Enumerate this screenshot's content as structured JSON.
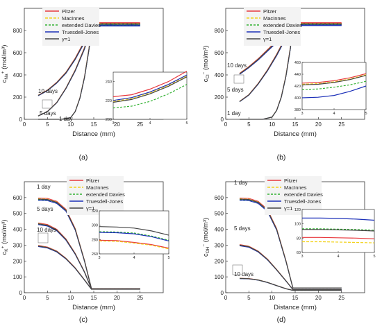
{
  "legend_labels": [
    "Pitzer",
    "MacInnes",
    "extended Davies",
    "Truesdell-Jones",
    "γ=1"
  ],
  "colors": {
    "pitzer": "#e8383d",
    "macinnes": "#f2d21a",
    "extended_davies": "#33b233",
    "truesdell_jones": "#1b2fb8",
    "gamma1": "#454545"
  },
  "chart_data": [
    {
      "type": "line",
      "panel_label": "(a)",
      "xlabel": "Distance (mm)",
      "ylabel": "c",
      "ylabel_sub": "Na",
      "ylabel_sup": "+",
      "ylabel_unit": "(mol/m³)",
      "xlim": [
        0,
        30
      ],
      "ylim": [
        0,
        1000
      ],
      "xticks": [
        "0",
        "5",
        "10",
        "15",
        "20",
        "25"
      ],
      "yticks": [
        "0",
        "200",
        "400",
        "600",
        "800"
      ],
      "legend": [
        "Pitzer",
        "MacInnes",
        "extended Davies",
        "Truesdell-Jones",
        "γ=1"
      ],
      "annotations": [
        "10 days",
        "5 days",
        "1 day"
      ],
      "curves": [
        {
          "label": "10 days",
          "x": [
            3,
            5,
            7,
            9,
            11,
            13,
            14.5,
            25
          ],
          "y": [
            215,
            260,
            330,
            420,
            545,
            700,
            855,
            855
          ]
        },
        {
          "label": "5 days",
          "x": [
            3,
            5,
            7,
            9,
            11,
            13,
            14.5,
            25
          ],
          "y": [
            30,
            70,
            150,
            280,
            440,
            640,
            850,
            850
          ]
        },
        {
          "label": "1 day",
          "x": [
            3,
            8,
            10,
            11,
            12,
            13,
            14,
            14.5,
            25
          ],
          "y": [
            0,
            0,
            15,
            70,
            190,
            380,
            640,
            860,
            860
          ]
        }
      ],
      "inset": {
        "xlim": [
          3,
          5
        ],
        "ylim": [
          200,
          250
        ],
        "xticks": [
          "3",
          "4",
          "5"
        ],
        "yticks": [
          "200",
          "220",
          "240"
        ],
        "series": [
          {
            "name": "Pitzer",
            "x": [
              3,
              3.5,
              4,
              4.5,
              5
            ],
            "y": [
              224,
              226,
              232,
              240,
              251
            ]
          },
          {
            "name": "MacInnes",
            "x": [
              3,
              3.5,
              4,
              4.5,
              5
            ],
            "y": [
              219,
              222,
              228,
              236,
              246
            ]
          },
          {
            "name": "extended Davies",
            "x": [
              3,
              3.5,
              4,
              4.5,
              5
            ],
            "y": [
              212,
              214,
              219,
              227,
              237
            ]
          },
          {
            "name": "Truesdell-Jones",
            "x": [
              3,
              3.5,
              4,
              4.5,
              5
            ],
            "y": [
              220,
              223,
              229,
              237,
              247
            ]
          },
          {
            "name": "γ=1",
            "x": [
              3,
              3.5,
              4,
              4.5,
              5
            ],
            "y": [
              218,
              221,
              227,
              235,
              245
            ]
          }
        ]
      }
    },
    {
      "type": "line",
      "panel_label": "(b)",
      "xlabel": "Distance (mm)",
      "ylabel": "c",
      "ylabel_sub": "Cl",
      "ylabel_sup": "−",
      "ylabel_unit": "(mol/m³)",
      "xlim": [
        0,
        30
      ],
      "ylim": [
        0,
        1000
      ],
      "xticks": [
        "0",
        "5",
        "10",
        "15",
        "20",
        "25"
      ],
      "yticks": [
        "0",
        "200",
        "400",
        "600",
        "800"
      ],
      "legend": [
        "Pitzer",
        "MacInnes",
        "extended Davies",
        "Truesdell-Jones",
        "γ=1"
      ],
      "annotations": [
        "10 days",
        "5 days",
        "1 day"
      ],
      "curves": [
        {
          "label": "10 days",
          "x": [
            3,
            5,
            7,
            9,
            11,
            13,
            14.5,
            25
          ],
          "y": [
            410,
            470,
            540,
            620,
            700,
            780,
            855,
            855
          ]
        },
        {
          "label": "5 days",
          "x": [
            3,
            5,
            7,
            9,
            11,
            13,
            14.5,
            25
          ],
          "y": [
            160,
            220,
            320,
            440,
            580,
            740,
            855,
            855
          ]
        },
        {
          "label": "1 day",
          "x": [
            3,
            8,
            10,
            11,
            12,
            13,
            14,
            14.5,
            25
          ],
          "y": [
            0,
            0,
            20,
            80,
            200,
            390,
            650,
            860,
            860
          ]
        }
      ],
      "inset": {
        "xlim": [
          3,
          5
        ],
        "ylim": [
          380,
          460
        ],
        "xticks": [
          "3",
          "4",
          "5"
        ],
        "yticks": [
          "380",
          "400",
          "420",
          "440",
          "460"
        ],
        "series": [
          {
            "name": "Pitzer",
            "x": [
              3,
              3.5,
              4,
              4.5,
              5
            ],
            "y": [
              425,
              426,
              429,
              434,
              441
            ]
          },
          {
            "name": "MacInnes",
            "x": [
              3,
              3.5,
              4,
              4.5,
              5
            ],
            "y": [
              423,
              424,
              427,
              432,
              439
            ]
          },
          {
            "name": "extended Davies",
            "x": [
              3,
              3.5,
              4,
              4.5,
              5
            ],
            "y": [
              414,
              415,
              418,
              422,
              428
            ]
          },
          {
            "name": "Truesdell-Jones",
            "x": [
              3,
              3.5,
              4,
              4.5,
              5
            ],
            "y": [
              400,
              401,
              404,
              411,
              420
            ]
          },
          {
            "name": "γ=1",
            "x": [
              3,
              3.5,
              4,
              4.5,
              5
            ],
            "y": [
              422,
              423,
              426,
              431,
              438
            ]
          }
        ]
      }
    },
    {
      "type": "line",
      "panel_label": "(c)",
      "xlabel": "Distance (mm)",
      "ylabel": "c",
      "ylabel_sub": "K",
      "ylabel_sup": "+",
      "ylabel_unit": "(mol/m³)",
      "xlim": [
        0,
        30
      ],
      "ylim": [
        0,
        700
      ],
      "xticks": [
        "0",
        "5",
        "10",
        "15",
        "20",
        "25"
      ],
      "yticks": [
        "0",
        "100",
        "200",
        "300",
        "400",
        "500",
        "600"
      ],
      "legend": [
        "Pitzer",
        "MacInnes",
        "extended Davies",
        "Truesdell-Jones",
        "γ=1"
      ],
      "annotations": [
        "1 day",
        "5 days",
        "10 days"
      ],
      "curves": [
        {
          "label": "1 day",
          "x": [
            3,
            5,
            7,
            9,
            11,
            13,
            14.5,
            25
          ],
          "y": [
            590,
            588,
            570,
            520,
            400,
            200,
            25,
            25
          ]
        },
        {
          "label": "5 days",
          "x": [
            3,
            5,
            7,
            9,
            11,
            13,
            14.5,
            25
          ],
          "y": [
            435,
            425,
            395,
            335,
            245,
            130,
            25,
            25
          ]
        },
        {
          "label": "10 days",
          "x": [
            3,
            5,
            7,
            9,
            11,
            13,
            14.5,
            25
          ],
          "y": [
            295,
            285,
            260,
            215,
            155,
            80,
            22,
            22
          ]
        }
      ],
      "inset": {
        "xlim": [
          3,
          5
        ],
        "ylim": [
          260,
          320
        ],
        "xticks": [
          "3",
          "4",
          "5"
        ],
        "yticks": [
          "260",
          "280",
          "300",
          "320"
        ],
        "series": [
          {
            "name": "Pitzer",
            "x": [
              3,
              3.5,
              4,
              4.5,
              5
            ],
            "y": [
              279,
              278.5,
              276,
              273,
              268
            ]
          },
          {
            "name": "MacInnes",
            "x": [
              3,
              3.5,
              4,
              4.5,
              5
            ],
            "y": [
              278,
              277.5,
              275,
              272,
              267
            ]
          },
          {
            "name": "extended Davies",
            "x": [
              3,
              3.5,
              4,
              4.5,
              5
            ],
            "y": [
              291,
              290.5,
              289,
              285,
              279
            ]
          },
          {
            "name": "Truesdell-Jones",
            "x": [
              3,
              3.5,
              4,
              4.5,
              5
            ],
            "y": [
              290,
              289.5,
              288,
              284,
              278
            ]
          },
          {
            "name": "γ=1",
            "x": [
              3,
              3.5,
              4,
              4.5,
              5
            ],
            "y": [
              298,
              297.5,
              296,
              292,
              286
            ]
          }
        ]
      }
    },
    {
      "type": "line",
      "panel_label": "(d)",
      "xlabel": "Distance (mm)",
      "ylabel": "c",
      "ylabel_sub": "OH",
      "ylabel_sup": "−",
      "ylabel_unit": "(mol/m³)",
      "xlim": [
        0,
        30
      ],
      "ylim": [
        0,
        700
      ],
      "xticks": [
        "0",
        "5",
        "10",
        "15",
        "20",
        "25"
      ],
      "yticks": [
        "0",
        "100",
        "200",
        "300",
        "400",
        "500",
        "600"
      ],
      "legend": [
        "Pitzer",
        "MacInnes",
        "extended Davies",
        "Truesdell-Jones",
        "γ=1"
      ],
      "annotations": [
        "1 day",
        "5 days",
        "10 days"
      ],
      "curves": [
        {
          "label": "1 day",
          "x": [
            3,
            5,
            7,
            9,
            11,
            13,
            14.5,
            25
          ],
          "y": [
            590,
            588,
            570,
            520,
            400,
            200,
            30,
            30
          ]
        },
        {
          "label": "5 days",
          "x": [
            3,
            5,
            7,
            9,
            11,
            13,
            14.5,
            25
          ],
          "y": [
            300,
            290,
            260,
            210,
            145,
            75,
            20,
            20
          ]
        },
        {
          "label": "10 days",
          "x": [
            3,
            5,
            7,
            9,
            11,
            13,
            14.5,
            25
          ],
          "y": [
            90,
            88,
            80,
            65,
            45,
            25,
            15,
            15
          ]
        }
      ],
      "inset": {
        "xlim": [
          3,
          5
        ],
        "ylim": [
          60,
          120
        ],
        "xticks": [
          "3",
          "4",
          "5"
        ],
        "yticks": [
          "60",
          "80",
          "100",
          "120"
        ],
        "series": [
          {
            "name": "Pitzer",
            "x": [
              3,
              3.5,
              4,
              4.5,
              5
            ],
            "y": [
              81,
              81,
              80.5,
              80,
              79
            ]
          },
          {
            "name": "MacInnes",
            "x": [
              3,
              3.5,
              4,
              4.5,
              5
            ],
            "y": [
              75,
              75,
              74.5,
              74,
              73.5
            ]
          },
          {
            "name": "extended Davies",
            "x": [
              3,
              3.5,
              4,
              4.5,
              5
            ],
            "y": [
              93,
              93,
              92.5,
              92,
              91
            ]
          },
          {
            "name": "Truesdell-Jones",
            "x": [
              3,
              3.5,
              4,
              4.5,
              5
            ],
            "y": [
              108,
              108,
              107.5,
              106.5,
              105
            ]
          },
          {
            "name": "γ=1",
            "x": [
              3,
              3.5,
              4,
              4.5,
              5
            ],
            "y": [
              92,
              92,
              91.5,
              91,
              90
            ]
          }
        ]
      }
    }
  ]
}
